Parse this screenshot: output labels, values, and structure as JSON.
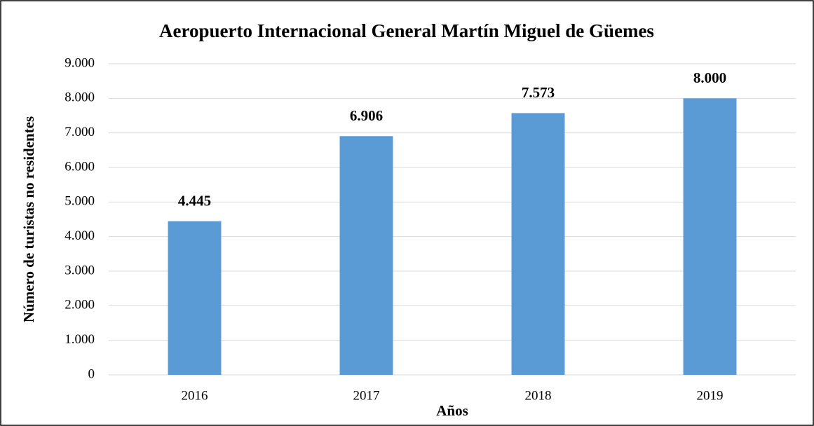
{
  "chart_data": {
    "type": "bar",
    "title": "Aeropuerto Internacional General Martín Miguel de Güemes",
    "x_label": "Años",
    "y_label": "Número de turistas no residentes",
    "categories": [
      "2016",
      "2017",
      "2018",
      "2019"
    ],
    "values": [
      4445,
      6906,
      7573,
      8000
    ],
    "value_labels": [
      "4.445",
      "6.906",
      "7.573",
      "8.000"
    ],
    "color": "#5b9bd5",
    "ylim": [
      0,
      9000
    ],
    "yticks": [
      0,
      {
        "value": 1000,
        "label": "1.000"
      },
      {
        "value": 2000,
        "label": "2.000"
      },
      {
        "value": 3000,
        "label": "3.000"
      },
      {
        "value": 4000,
        "label": "4.000"
      },
      {
        "value": 5000,
        "label": "5.000"
      },
      {
        "value": 6000,
        "label": "6.000"
      },
      {
        "value": 7000,
        "label": "7.000"
      },
      {
        "value": 8000,
        "label": "8.000"
      },
      {
        "value": 9000,
        "label": "9.000"
      }
    ],
    "grid": true
  }
}
